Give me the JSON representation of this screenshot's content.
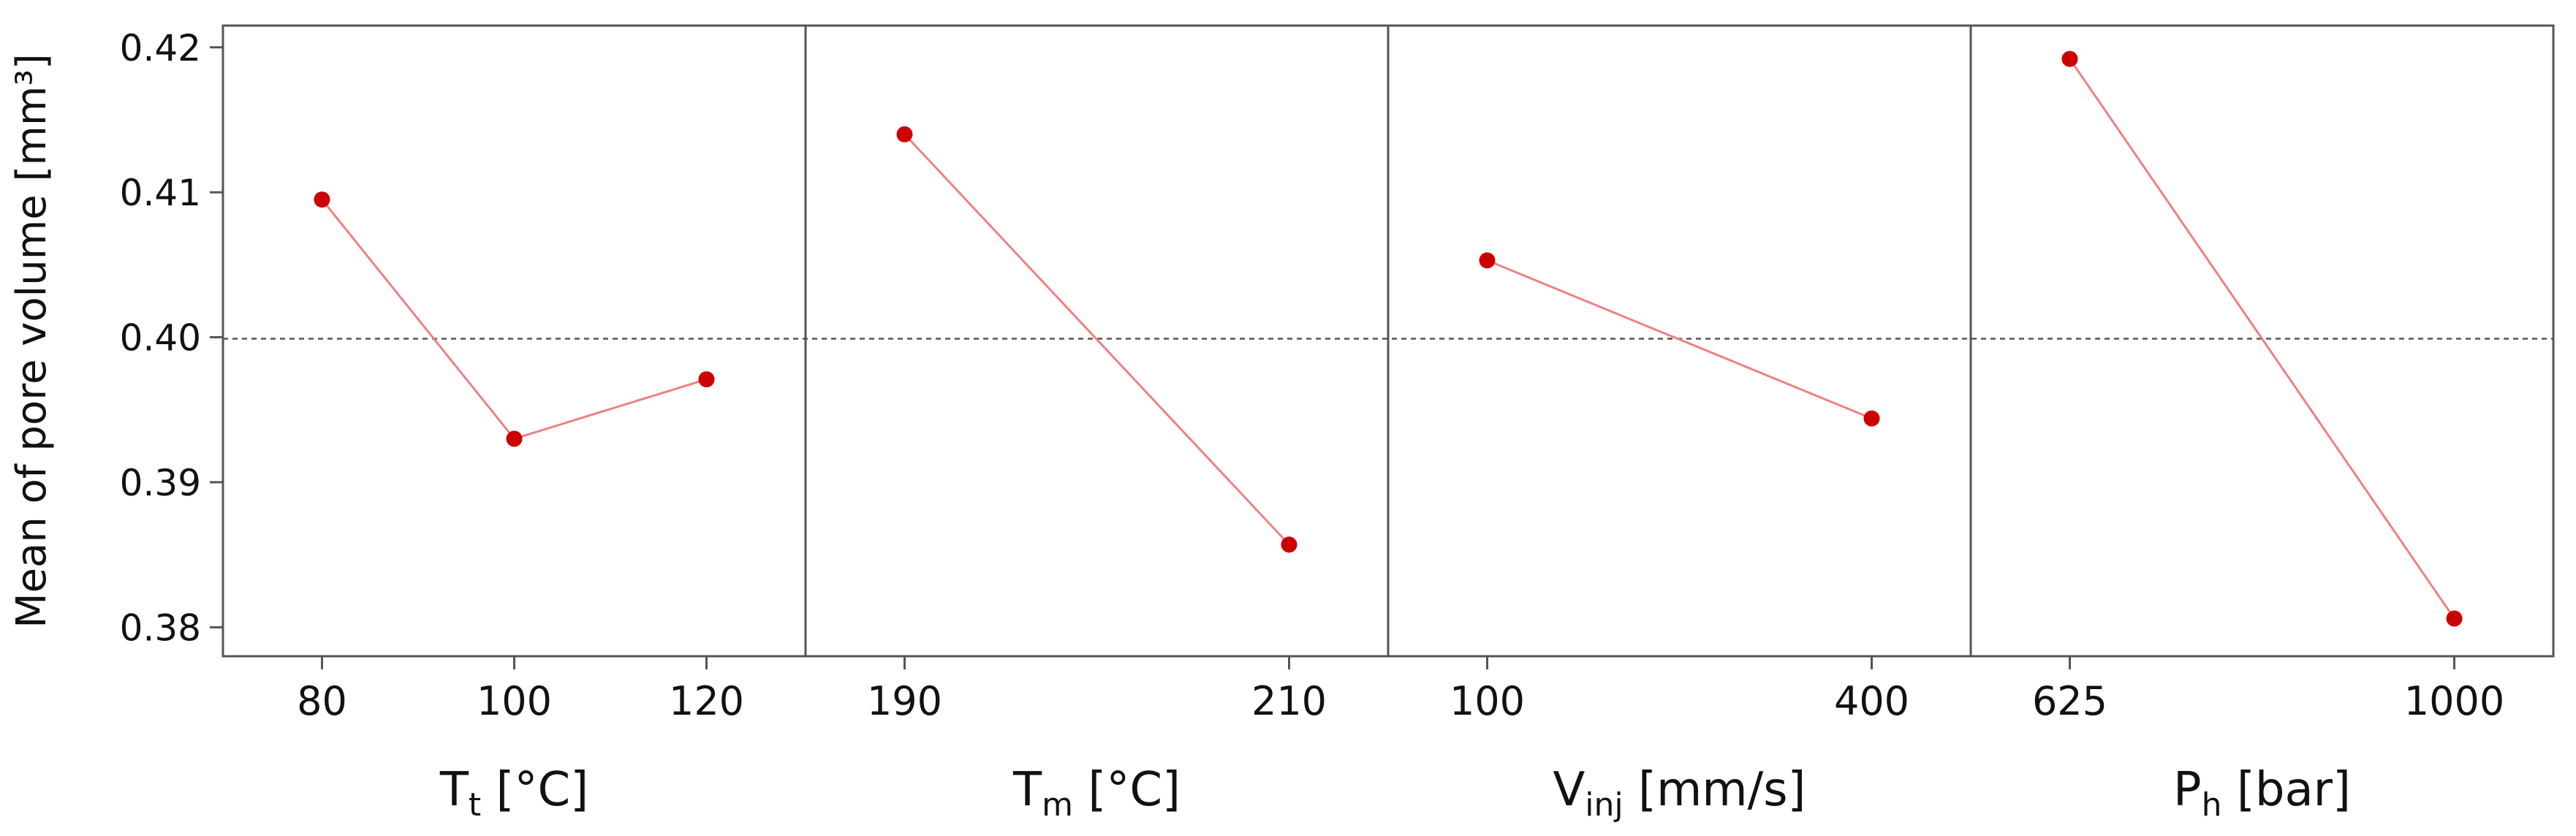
{
  "chart_data": {
    "type": "line",
    "title": "",
    "ylabel": "Mean of pore volume [mm³]",
    "ylim": [
      0.378,
      0.4215
    ],
    "yticks": [
      0.38,
      0.39,
      0.4,
      0.41,
      0.42
    ],
    "ytick_labels": [
      "0.38",
      "0.39",
      "0.40",
      "0.41",
      "0.42"
    ],
    "reference_line": {
      "y": 0.3999,
      "style": "dashed"
    },
    "grid": false,
    "legend": "none",
    "colors": {
      "line": "#f08080",
      "marker": "#cc0000",
      "frame": "#555555",
      "reference": "#555555"
    },
    "panels": [
      {
        "xlabel": "Tₜ [°C]",
        "xlabel_main": "T",
        "xlabel_sub": "t",
        "xlabel_unit": " [°C]",
        "categories": [
          "80",
          "100",
          "120"
        ],
        "values": [
          0.4095,
          0.393,
          0.3971
        ]
      },
      {
        "xlabel": "Tₘ [°C]",
        "xlabel_main": "T",
        "xlabel_sub": "m",
        "xlabel_unit": " [°C]",
        "categories": [
          "190",
          "210"
        ],
        "values": [
          0.414,
          0.3857
        ]
      },
      {
        "xlabel": "Vᵢₙⱼ [mm/s]",
        "xlabel_main": "V",
        "xlabel_sub": "inj",
        "xlabel_unit": " [mm/s]",
        "categories": [
          "100",
          "400"
        ],
        "values": [
          0.4053,
          0.3944
        ]
      },
      {
        "xlabel": "Pₕ [bar]",
        "xlabel_main": "P",
        "xlabel_sub": "h",
        "xlabel_unit": " [bar]",
        "categories": [
          "625",
          "1000"
        ],
        "values": [
          0.4192,
          0.3806
        ]
      }
    ]
  }
}
